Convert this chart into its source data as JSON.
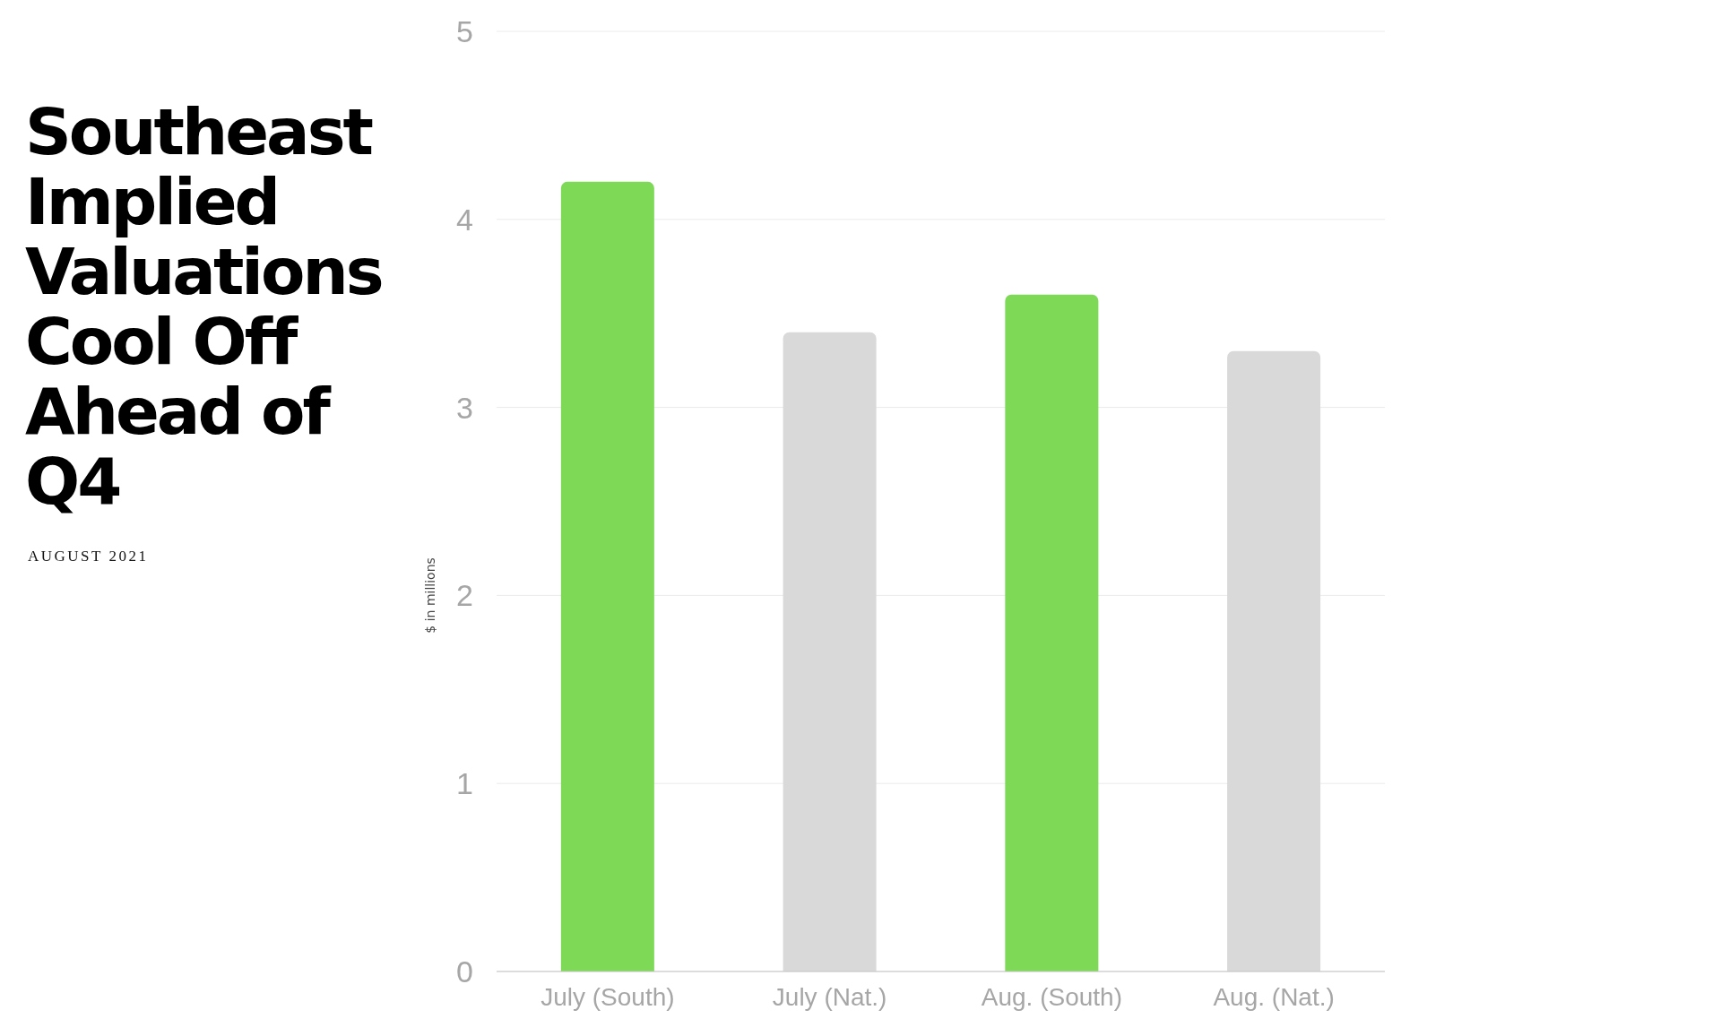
{
  "chart_data": {
    "type": "bar",
    "title": "Southeast Implied Valuations Cool Off Ahead of Q4",
    "subtitle": "AUGUST 2021",
    "ylabel": "$ in millions",
    "categories": [
      "July (South)",
      "July (Nat.)",
      "Aug. (South)",
      "Aug. (Nat.)"
    ],
    "values": [
      4.2,
      3.4,
      3.6,
      3.3
    ],
    "colors": [
      "#7ed957",
      "#d9d9d9",
      "#7ed957",
      "#d9d9d9"
    ],
    "ylim": [
      0,
      5
    ],
    "yticks": [
      0,
      1,
      2,
      3,
      4,
      5
    ],
    "grid": "y"
  }
}
